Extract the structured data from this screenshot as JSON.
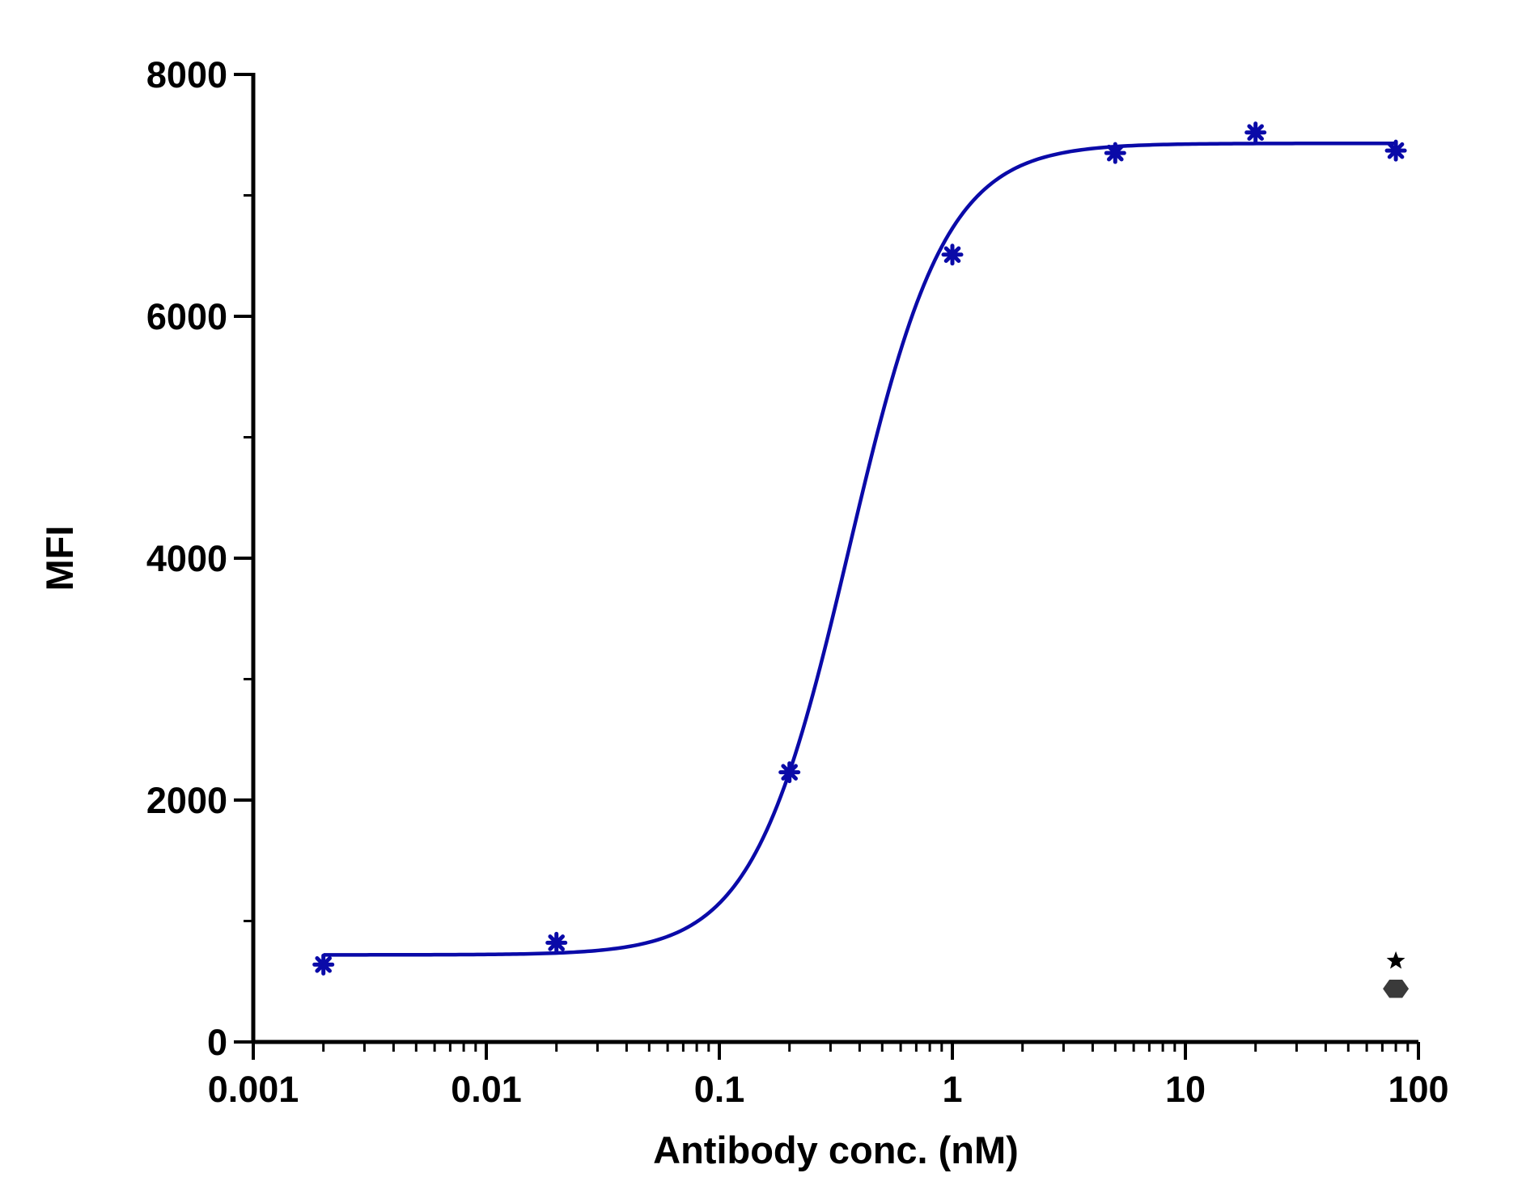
{
  "chart_data": {
    "type": "scatter",
    "title": "",
    "xlabel": "Antibody conc. (nM)",
    "ylabel": "MFI",
    "x_scale": "log",
    "xlim": [
      0.001,
      100
    ],
    "ylim": [
      0,
      8000
    ],
    "x_ticks": [
      "0.001",
      "0.01",
      "0.1",
      "1",
      "10",
      "100"
    ],
    "y_ticks": [
      "0",
      "2000",
      "4000",
      "6000",
      "8000"
    ],
    "grid": false,
    "legend": "none",
    "series": [
      {
        "color": "#0a0aa8",
        "marker": "asterisk",
        "points": [
          {
            "x": 0.002,
            "y": 640
          },
          {
            "x": 0.02,
            "y": 820
          },
          {
            "x": 0.2,
            "y": 2230
          },
          {
            "x": 1,
            "y": 6510
          },
          {
            "x": 5,
            "y": 7350
          },
          {
            "x": 20,
            "y": 7520
          },
          {
            "x": 80,
            "y": 7370
          }
        ],
        "fit": {
          "model": "4PL",
          "bottom": 720,
          "top": 7430,
          "ec50": 0.36,
          "hill": 2.1
        }
      },
      {
        "color": "#000000",
        "marker": "star",
        "points": [
          {
            "x": 80,
            "y": 670
          }
        ]
      },
      {
        "color": "#3a3a3a",
        "marker": "hexagon",
        "points": [
          {
            "x": 80,
            "y": 440
          }
        ]
      }
    ]
  }
}
